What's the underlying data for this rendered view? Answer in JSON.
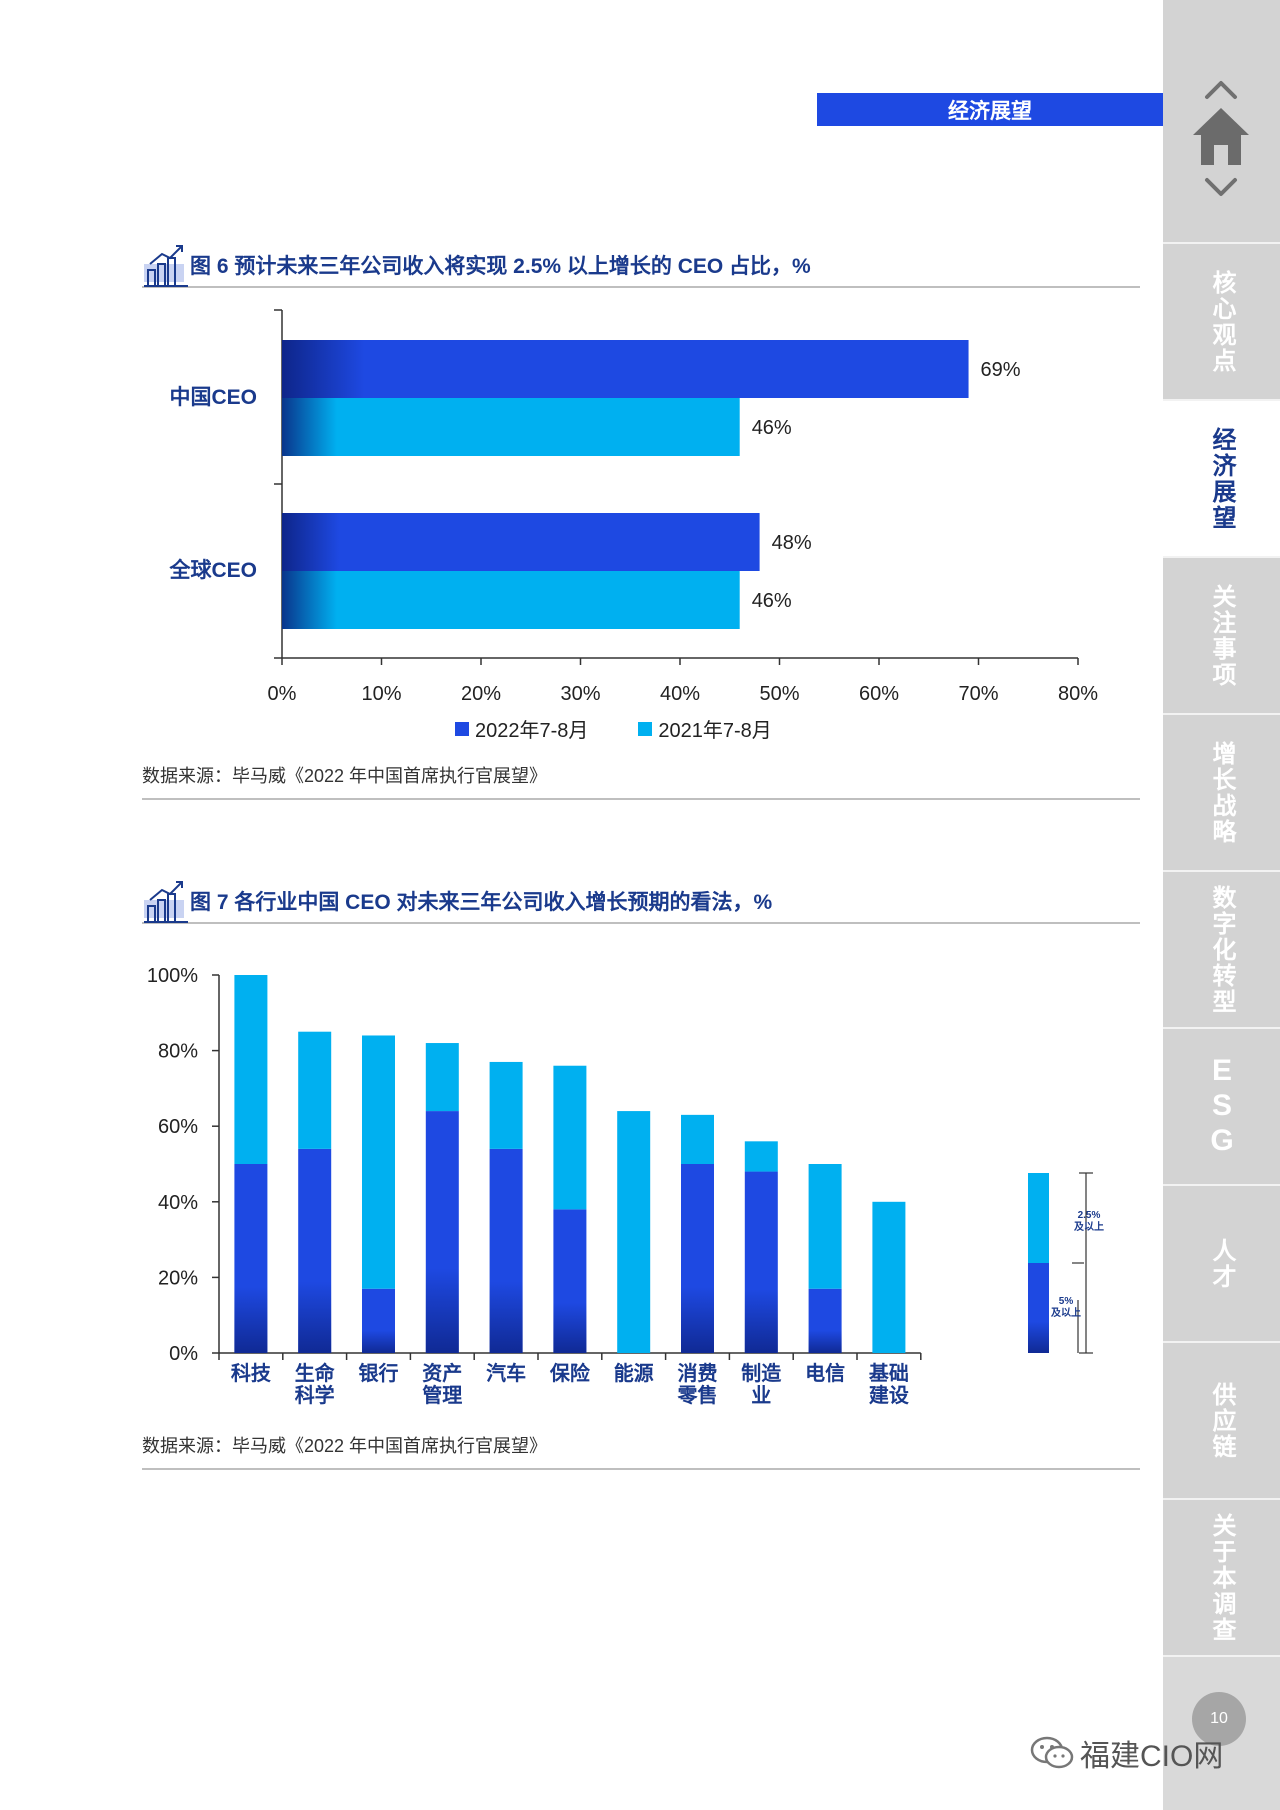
{
  "section_banner": "经济展望",
  "sidebar": {
    "items": [
      {
        "label": "核心观点",
        "active": false
      },
      {
        "label": "经济展望",
        "active": true
      },
      {
        "label": "关注事项",
        "active": false
      },
      {
        "label": "增长战略",
        "active": false
      },
      {
        "label": "数字化转型",
        "active": false
      },
      {
        "label": "ESG",
        "active": false
      },
      {
        "label": "人才",
        "active": false
      },
      {
        "label": "供应链",
        "active": false
      },
      {
        "label": "关于本调查",
        "active": false
      }
    ]
  },
  "page_number": "10",
  "watermark": "福建CIO网",
  "fig6": {
    "title": "图 6  预计未来三年公司收入将实现 2.5% 以上增长的 CEO 占比，%",
    "source": "数据来源：毕马威《2022 年中国首席执行官展望》"
  },
  "fig7": {
    "title": "图 7  各行业中国 CEO 对未来三年公司收入增长预期的看法，%",
    "source": "数据来源：毕马威《2022 年中国首席执行官展望》",
    "side_legend": {
      "upper": [
        "2.5%",
        "及以上"
      ],
      "lower": [
        "5%",
        "及以上"
      ]
    }
  },
  "colors": {
    "dark_blue": "#1e49e2",
    "light_blue": "#00b0f0",
    "navy": "#1a3a8c"
  },
  "chart_data": [
    {
      "type": "bar",
      "orientation": "horizontal",
      "categories": [
        "中国CEO",
        "全球CEO"
      ],
      "series": [
        {
          "name": "2022年7-8月",
          "values": [
            69,
            48
          ]
        },
        {
          "name": "2021年7-8月",
          "values": [
            46,
            46
          ]
        }
      ],
      "value_labels": [
        [
          "69%",
          "48%"
        ],
        [
          "46%",
          "46%"
        ]
      ],
      "xlim": [
        0,
        80
      ],
      "x_ticks": [
        "0%",
        "10%",
        "20%",
        "30%",
        "40%",
        "50%",
        "60%",
        "70%",
        "80%"
      ],
      "legend_position": "bottom"
    },
    {
      "type": "bar",
      "stacked": true,
      "categories": [
        [
          "科技"
        ],
        [
          "生命",
          "科学"
        ],
        [
          "银行"
        ],
        [
          "资产",
          "管理"
        ],
        [
          "汽车"
        ],
        [
          "保险"
        ],
        [
          "能源"
        ],
        [
          "消费",
          "零售"
        ],
        [
          "制造",
          "业"
        ],
        [
          "电信"
        ],
        [
          "基础",
          "建设"
        ]
      ],
      "series": [
        {
          "name": "5%及以上",
          "values": [
            50,
            54,
            17,
            64,
            54,
            38,
            0,
            50,
            48,
            17,
            0
          ]
        },
        {
          "name": "2.5%及以上",
          "values": [
            50,
            31,
            67,
            18,
            23,
            38,
            64,
            13,
            8,
            33,
            40
          ]
        }
      ],
      "ylim": [
        0,
        100
      ],
      "y_ticks": [
        "0%",
        "20%",
        "40%",
        "60%",
        "80%",
        "100%"
      ]
    }
  ]
}
